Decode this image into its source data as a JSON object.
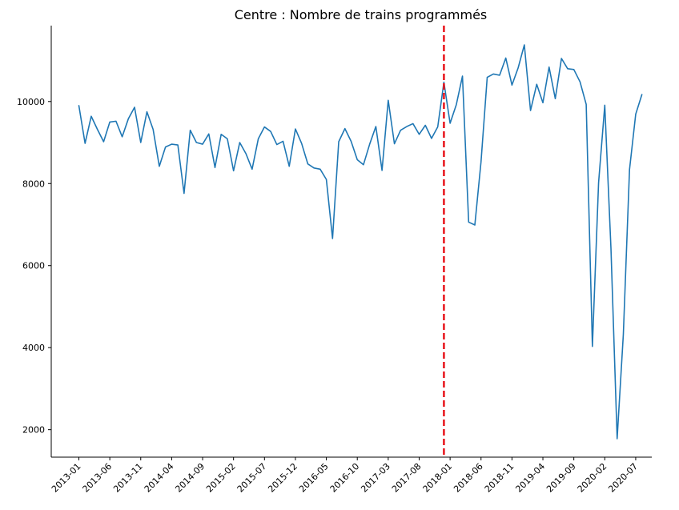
{
  "chart_data": {
    "type": "line",
    "title": "Centre : Nombre de trains programmés",
    "xlabel": "",
    "ylabel": "",
    "x_tick_labels": [
      "2013-01",
      "2013-06",
      "2013-11",
      "2014-04",
      "2014-09",
      "2015-02",
      "2015-07",
      "2015-12",
      "2016-05",
      "2016-10",
      "2017-03",
      "2017-08",
      "2018-01",
      "2018-06",
      "2018-11",
      "2019-04",
      "2019-09",
      "2020-02",
      "2020-07"
    ],
    "y_ticks": [
      2000,
      4000,
      6000,
      8000,
      10000
    ],
    "ylim": [
      1330,
      11850
    ],
    "grid": false,
    "series": [
      {
        "color": "#1f77b4",
        "start": "2013-01",
        "values": [
          9900,
          8980,
          9640,
          9320,
          9020,
          9500,
          9520,
          9140,
          9580,
          9860,
          9000,
          9750,
          9320,
          8420,
          8890,
          8960,
          8940,
          7760,
          9300,
          9000,
          8960,
          9210,
          8390,
          9200,
          9090,
          8310,
          9000,
          8730,
          8350,
          9090,
          9380,
          9270,
          8950,
          9030,
          8420,
          9330,
          8980,
          8480,
          8380,
          8350,
          8100,
          6660,
          9020,
          9340,
          9030,
          8580,
          8460,
          8960,
          9390,
          8320,
          10030,
          8970,
          9300,
          9390,
          9460,
          9200,
          9420,
          9100,
          9380,
          10470,
          9470,
          9920,
          10620,
          7060,
          6990,
          8530,
          10590,
          10670,
          10640,
          11060,
          10400,
          10820,
          11380,
          9780,
          10420,
          9970,
          10840,
          10070,
          11050,
          10800,
          10780,
          10480,
          9930,
          4030,
          8020,
          9910,
          6420,
          1780,
          4320,
          8340,
          9690,
          10170
        ]
      }
    ],
    "annotations": {
      "vline": {
        "x": "2017-12",
        "color": "#e8141b",
        "style": "dashed"
      }
    }
  }
}
